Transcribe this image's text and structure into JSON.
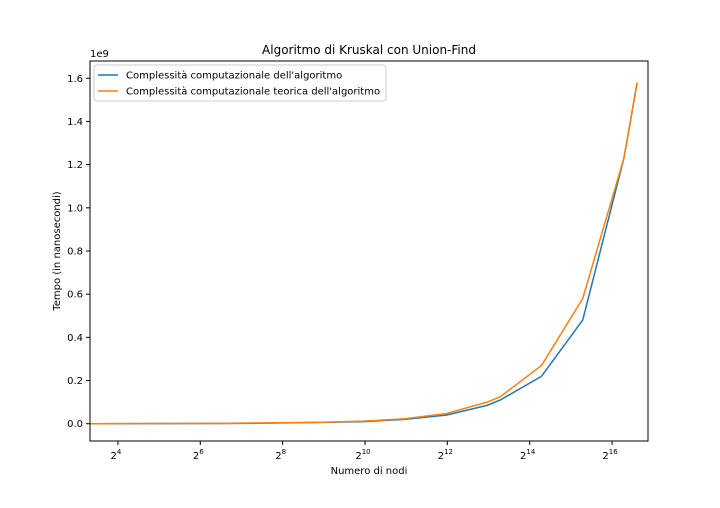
{
  "chart_data": {
    "type": "line",
    "title": "Algoritmo di Kruskal con Union-Find",
    "xlabel": "Numero di nodi",
    "ylabel": "Tempo (in nanosecondi)",
    "x_scale": "log2",
    "y_offset_label": "1e9",
    "y_unit_multiplier": 1000000000,
    "xlim": [
      10,
      120000
    ],
    "ylim": [
      -0.08,
      1.68
    ],
    "x_ticks": [
      {
        "value": 16,
        "base": "2",
        "exp": "4"
      },
      {
        "value": 64,
        "base": "2",
        "exp": "6"
      },
      {
        "value": 256,
        "base": "2",
        "exp": "8"
      },
      {
        "value": 1024,
        "base": "2",
        "exp": "10"
      },
      {
        "value": 4096,
        "base": "2",
        "exp": "12"
      },
      {
        "value": 16384,
        "base": "2",
        "exp": "14"
      },
      {
        "value": 65536,
        "base": "2",
        "exp": "16"
      }
    ],
    "y_ticks": [
      {
        "value": 0.0,
        "label": "0.0"
      },
      {
        "value": 0.2,
        "label": "0.2"
      },
      {
        "value": 0.4,
        "label": "0.4"
      },
      {
        "value": 0.6,
        "label": "0.6"
      },
      {
        "value": 0.8,
        "label": "0.8"
      },
      {
        "value": 1.0,
        "label": "1.0"
      },
      {
        "value": 1.2,
        "label": "1.2"
      },
      {
        "value": 1.4,
        "label": "1.4"
      },
      {
        "value": 1.6,
        "label": "1.6"
      }
    ],
    "legend_position": "top-left",
    "grid": false,
    "series": [
      {
        "name": "Complessità computazionale dell'algoritmo",
        "color": "#1f77b4",
        "x": [
          10,
          100,
          200,
          500,
          1000,
          2000,
          4000,
          8000,
          10000,
          20000,
          40000,
          80000,
          100000
        ],
        "y": [
          0.0,
          0.001,
          0.003,
          0.006,
          0.01,
          0.02,
          0.04,
          0.085,
          0.11,
          0.22,
          0.48,
          1.23,
          1.58
        ]
      },
      {
        "name": "Complessità computazionale teorica dell'algoritmo",
        "color": "#ff7f0e",
        "x": [
          10,
          100,
          200,
          500,
          1000,
          2000,
          4000,
          8000,
          10000,
          20000,
          40000,
          80000,
          100000
        ],
        "y": [
          0.0,
          0.002,
          0.004,
          0.007,
          0.012,
          0.023,
          0.047,
          0.1,
          0.125,
          0.27,
          0.58,
          1.23,
          1.58
        ]
      }
    ]
  }
}
